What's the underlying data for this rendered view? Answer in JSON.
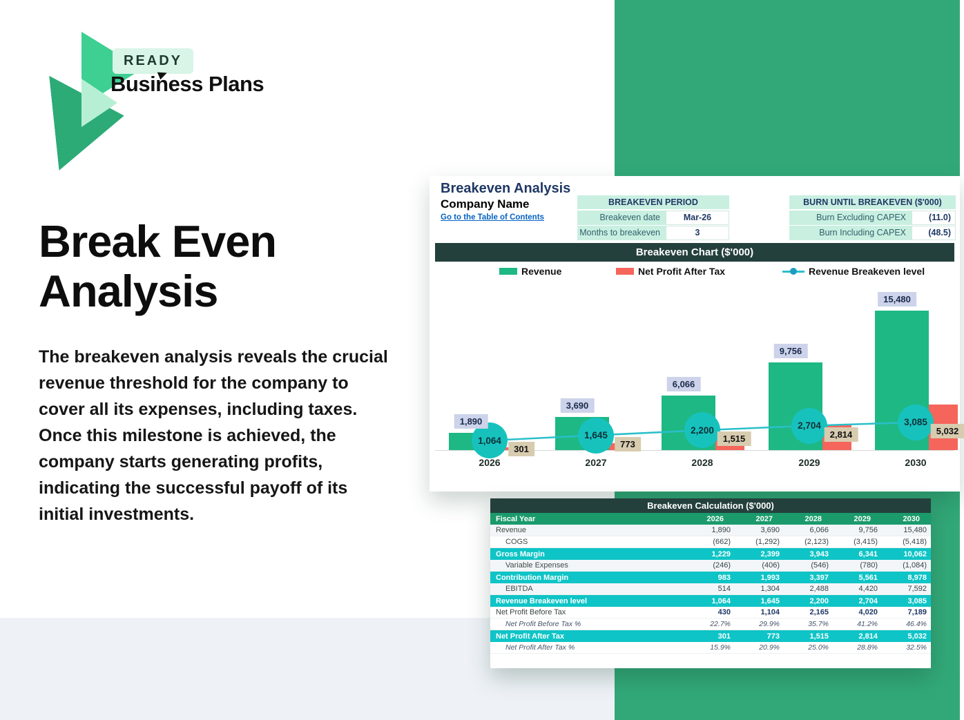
{
  "brand": {
    "badge": "READY",
    "name": "Business Plans"
  },
  "hero": {
    "title": "Break Even Analysis",
    "paragraph": "The breakeven analysis reveals the crucial revenue threshold for the company to cover all its expenses, including taxes. Once this milestone is achieved, the company starts generating profits, indicating the successful payoff of its initial investments."
  },
  "sheet": {
    "title": "Breakeven Analysis",
    "company": "Company Name",
    "link": "Go to the Table of Contents",
    "period_table": {
      "header": "BREAKEVEN PERIOD",
      "rows": [
        {
          "label": "Breakeven date",
          "value": "Mar-26"
        },
        {
          "label": "Months to breakeven",
          "value": "3"
        }
      ]
    },
    "burn_table": {
      "header": "BURN UNTIL BREAKEVEN ($'000)",
      "rows": [
        {
          "label": "Burn Excluding CAPEX",
          "value": "(11.0)"
        },
        {
          "label": "Burn Including CAPEX",
          "value": "(48.5)"
        }
      ]
    }
  },
  "chart_data": {
    "type": "bar",
    "title": "Breakeven Chart ($'000)",
    "categories": [
      "2026",
      "2027",
      "2028",
      "2029",
      "2030"
    ],
    "series": [
      {
        "name": "Revenue",
        "values": [
          1890,
          3690,
          6066,
          9756,
          15480
        ],
        "labels": [
          "1,890",
          "3,690",
          "6,066",
          "9,756",
          "15,480"
        ]
      },
      {
        "name": "Net Profit After Tax",
        "values": [
          301,
          773,
          1515,
          2814,
          5032
        ],
        "labels": [
          "301",
          "773",
          "1,515",
          "2,814",
          "5,032"
        ]
      },
      {
        "name": "Revenue Breakeven level",
        "values": [
          1064,
          1645,
          2200,
          2704,
          3085
        ],
        "labels": [
          "1,064",
          "1,645",
          "2,200",
          "2,704",
          "3,085"
        ]
      }
    ],
    "legend_position": "top",
    "ylim": [
      0,
      16000
    ],
    "grid": false,
    "colors": {
      "revenue_bar": "#1db884",
      "npat_bar": "#f5655c",
      "breakeven_line": "#2abfca",
      "breakeven_marker": "#17c2bd",
      "revenue_label_bg": "#ccd3ea",
      "npat_label_bg": "#d8ccb0"
    }
  },
  "calc_table": {
    "title": "Breakeven Calculation ($'000)",
    "col_header": "Fiscal Year",
    "years": [
      "2026",
      "2027",
      "2028",
      "2029",
      "2030"
    ],
    "rows": [
      {
        "label": "Revenue",
        "style": "normal",
        "indent": false,
        "zebra": true,
        "values": [
          "1,890",
          "3,690",
          "6,066",
          "9,756",
          "15,480"
        ]
      },
      {
        "label": "COGS",
        "style": "normal",
        "indent": true,
        "zebra": false,
        "values": [
          "(662)",
          "(1,292)",
          "(2,123)",
          "(3,415)",
          "(5,418)"
        ]
      },
      {
        "label": "Gross Margin",
        "style": "highlight",
        "indent": false,
        "zebra": false,
        "values": [
          "1,229",
          "2,399",
          "3,943",
          "6,341",
          "10,062"
        ]
      },
      {
        "label": "Variable Expenses",
        "style": "normal",
        "indent": true,
        "zebra": true,
        "values": [
          "(246)",
          "(406)",
          "(546)",
          "(780)",
          "(1,084)"
        ]
      },
      {
        "label": "Contribution Margin",
        "style": "highlight",
        "indent": false,
        "zebra": false,
        "values": [
          "983",
          "1,993",
          "3,397",
          "5,561",
          "8,978"
        ]
      },
      {
        "label": "EBITDA",
        "style": "normal",
        "indent": true,
        "zebra": true,
        "values": [
          "514",
          "1,304",
          "2,488",
          "4,420",
          "7,592"
        ]
      },
      {
        "label": "Revenue Breakeven level",
        "style": "highlight",
        "indent": false,
        "zebra": false,
        "values": [
          "1,064",
          "1,645",
          "2,200",
          "2,704",
          "3,085"
        ]
      },
      {
        "label": "Net Profit Before Tax",
        "style": "bold",
        "indent": false,
        "zebra": false,
        "values": [
          "430",
          "1,104",
          "2,165",
          "4,020",
          "7,189"
        ]
      },
      {
        "label": "Net Profit Before Tax %",
        "style": "italic",
        "indent": true,
        "zebra": false,
        "values": [
          "22.7%",
          "29.9%",
          "35.7%",
          "41.2%",
          "46.4%"
        ]
      },
      {
        "label": "Net Profit After Tax",
        "style": "highlight",
        "indent": false,
        "zebra": false,
        "values": [
          "301",
          "773",
          "1,515",
          "2,814",
          "5,032"
        ]
      },
      {
        "label": "Net Profit After Tax %",
        "style": "italic",
        "indent": true,
        "zebra": false,
        "values": [
          "15.9%",
          "20.9%",
          "25.0%",
          "28.8%",
          "32.5%"
        ]
      }
    ]
  },
  "colors": {
    "page_accent_green": "#32a878",
    "mint": "#c9efe1",
    "navy": "#1f3864",
    "dark_header": "#24403d",
    "highlight_cyan": "#0fc4c6",
    "fiscal_green": "#1b9b6c",
    "link_blue": "#0563c1"
  }
}
